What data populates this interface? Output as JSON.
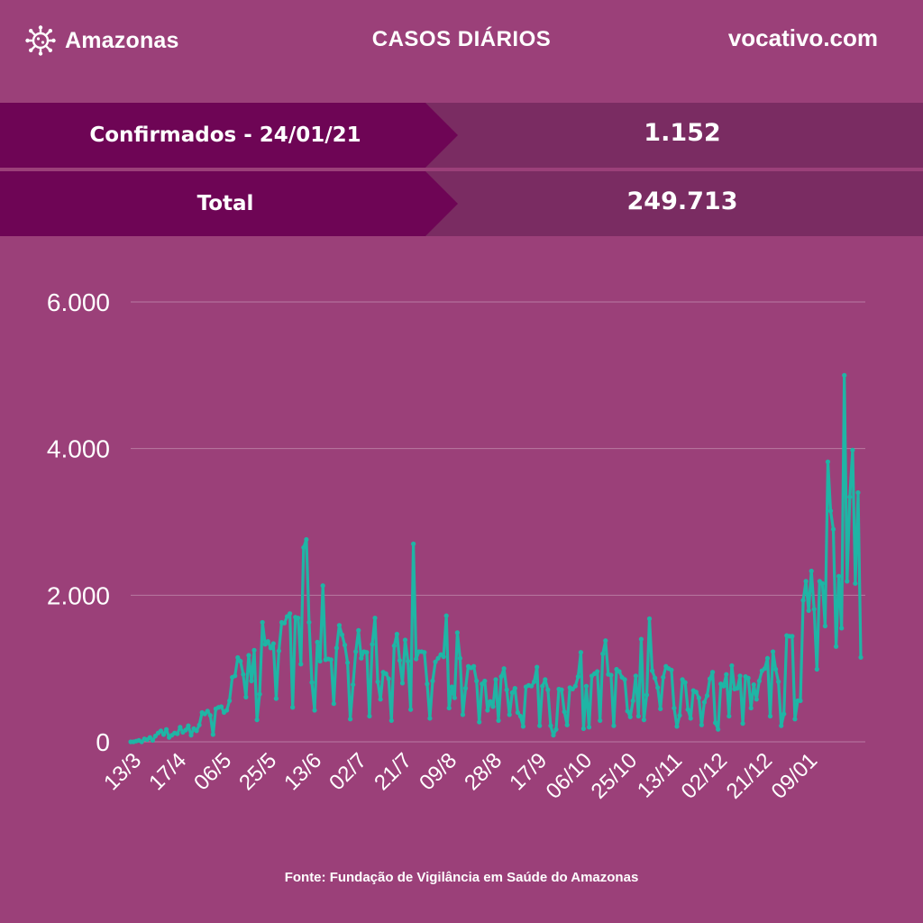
{
  "header": {
    "brand": "Amazonas",
    "title": "CASOS DIÁRIOS",
    "site": "vocativo.com",
    "icon": "virus-icon"
  },
  "stats": [
    {
      "label": "Confirmados - 24/01/21",
      "value": "1.152"
    },
    {
      "label": "Total",
      "value": "249.713"
    }
  ],
  "colors": {
    "background": "#9b4079",
    "banner": "#6e0555",
    "value_band": "#7a2c62",
    "line": "#1fb5a5",
    "grid": "#b97aa2"
  },
  "chart_data": {
    "type": "line",
    "title": "",
    "xlabel": "",
    "ylabel": "",
    "ylim": [
      0,
      6000
    ],
    "yticks": [
      0,
      2000,
      4000,
      6000
    ],
    "ytick_labels": [
      "0",
      "2.000",
      "4.000",
      "6.000"
    ],
    "xtick_labels": [
      "13/3",
      "17/4",
      "06/5",
      "25/5",
      "13/6",
      "02/7",
      "21/7",
      "09/8",
      "28/8",
      "17/9",
      "06/10",
      "25/10",
      "13/11",
      "02/12",
      "21/12",
      "09/01"
    ],
    "grid": true,
    "legend": "none",
    "series": [
      {
        "values": [
          0,
          0,
          10,
          20,
          0,
          40,
          30,
          60,
          20,
          80,
          120,
          150,
          100,
          170,
          60,
          90,
          120,
          110,
          200,
          130,
          160,
          220,
          90,
          180,
          150,
          230,
          400,
          380,
          420,
          360,
          100,
          450,
          470,
          480,
          400,
          430,
          560,
          880,
          900,
          1150,
          1100,
          920,
          610,
          1180,
          830,
          1250,
          300,
          650,
          1630,
          1330,
          1370,
          1280,
          1340,
          590,
          1240,
          1630,
          1620,
          1710,
          1750,
          470,
          1700,
          1690,
          1060,
          2650,
          2760,
          1630,
          810,
          430,
          1360,
          1100,
          2130,
          1120,
          1130,
          1120,
          520,
          1280,
          1590,
          1460,
          1320,
          1080,
          310,
          780,
          1230,
          1520,
          1140,
          1230,
          1220,
          350,
          1330,
          1690,
          820,
          580,
          950,
          930,
          860,
          290,
          1310,
          1470,
          1110,
          800,
          1390,
          1100,
          440,
          2700,
          1130,
          1230,
          1230,
          1220,
          790,
          320,
          830,
          1090,
          1140,
          1190,
          1160,
          1720,
          460,
          750,
          600,
          1490,
          1140,
          370,
          730,
          1030,
          1010,
          1030,
          830,
          270,
          790,
          830,
          430,
          550,
          480,
          850,
          290,
          890,
          1000,
          710,
          370,
          670,
          730,
          400,
          350,
          210,
          750,
          770,
          760,
          820,
          1020,
          220,
          760,
          850,
          710,
          220,
          90,
          170,
          720,
          710,
          410,
          230,
          740,
          720,
          760,
          890,
          1220,
          180,
          760,
          200,
          900,
          930,
          960,
          290,
          1200,
          1380,
          920,
          910,
          220,
          990,
          960,
          880,
          850,
          420,
          340,
          560,
          900,
          350,
          1400,
          300,
          640,
          1680,
          970,
          870,
          740,
          450,
          880,
          1030,
          1000,
          980,
          460,
          210,
          360,
          850,
          810,
          440,
          320,
          700,
          680,
          600,
          230,
          540,
          630,
          860,
          950,
          260,
          170,
          790,
          760,
          920,
          350,
          1040,
          720,
          730,
          900,
          250,
          890,
          870,
          460,
          780,
          580,
          830,
          970,
          1000,
          1140,
          350,
          1230,
          990,
          820,
          220,
          380,
          1450,
          1440,
          1440,
          310,
          560,
          560,
          1930,
          2190,
          1790,
          2330,
          1810,
          990,
          2190,
          2160,
          1580,
          3820,
          3150,
          2900,
          1300,
          2260,
          1550,
          5000,
          2190,
          3340,
          3980,
          2160,
          3400,
          1152
        ]
      }
    ]
  },
  "source": "Fonte: Fundação de Vigilância em Saúde do Amazonas"
}
